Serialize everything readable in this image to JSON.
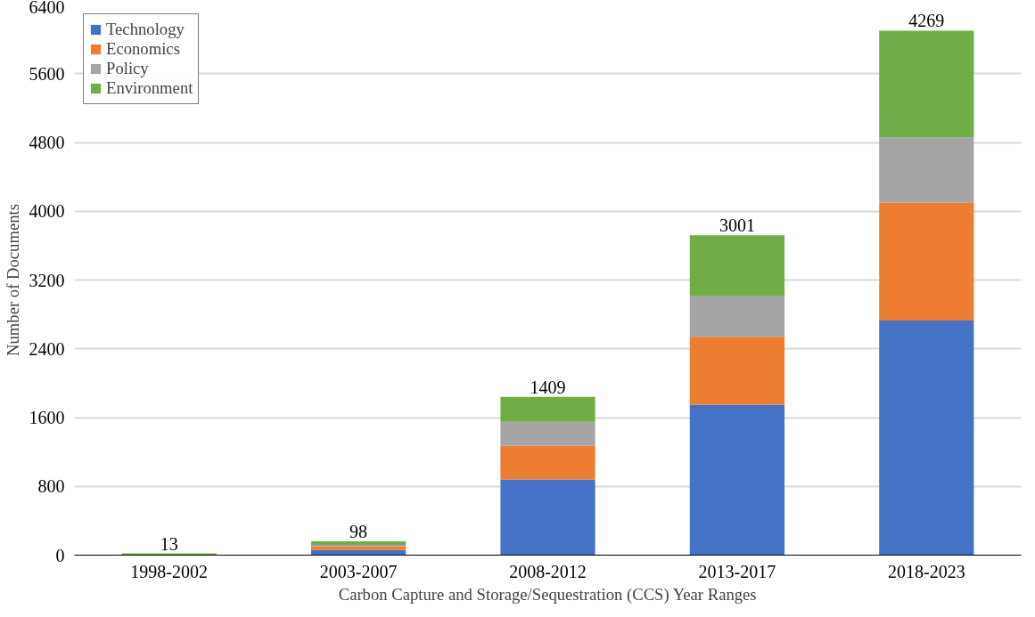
{
  "chart_data": {
    "type": "bar",
    "stacked": true,
    "xlabel": "Carbon Capture and Storage/Sequestration (CCS) Year Ranges",
    "ylabel": "Number of Documents",
    "categories": [
      "1998-2002",
      "2003-2007",
      "2008-2012",
      "2013-2017",
      "2018-2023"
    ],
    "series": [
      {
        "name": "Technology",
        "color": "#4472c4",
        "values": [
          0,
          60,
          880,
          1750,
          2730
        ]
      },
      {
        "name": "Economics",
        "color": "#ed7d31",
        "values": [
          0,
          40,
          390,
          790,
          1370
        ]
      },
      {
        "name": "Policy",
        "color": "#a5a5a5",
        "values": [
          0,
          20,
          280,
          470,
          760
        ]
      },
      {
        "name": "Environment",
        "color": "#70ad47",
        "values": [
          20,
          40,
          290,
          710,
          1240
        ]
      }
    ],
    "annotations": [
      {
        "text": "13",
        "x": "1998-2002",
        "y": 20
      },
      {
        "text": "98",
        "x": "2003-2007",
        "y": 160
      },
      {
        "text": "1409",
        "x": "2008-2012",
        "y": 1840
      },
      {
        "text": "3001",
        "x": "2013-2017",
        "y": 3720
      },
      {
        "text": "4269",
        "x": "2018-2023",
        "y": 6100
      }
    ],
    "ylim": [
      0,
      6400
    ],
    "yticks": [
      0,
      800,
      1600,
      2400,
      3200,
      4000,
      4800,
      5600,
      6400
    ],
    "grid": "y",
    "legend": "top left"
  }
}
